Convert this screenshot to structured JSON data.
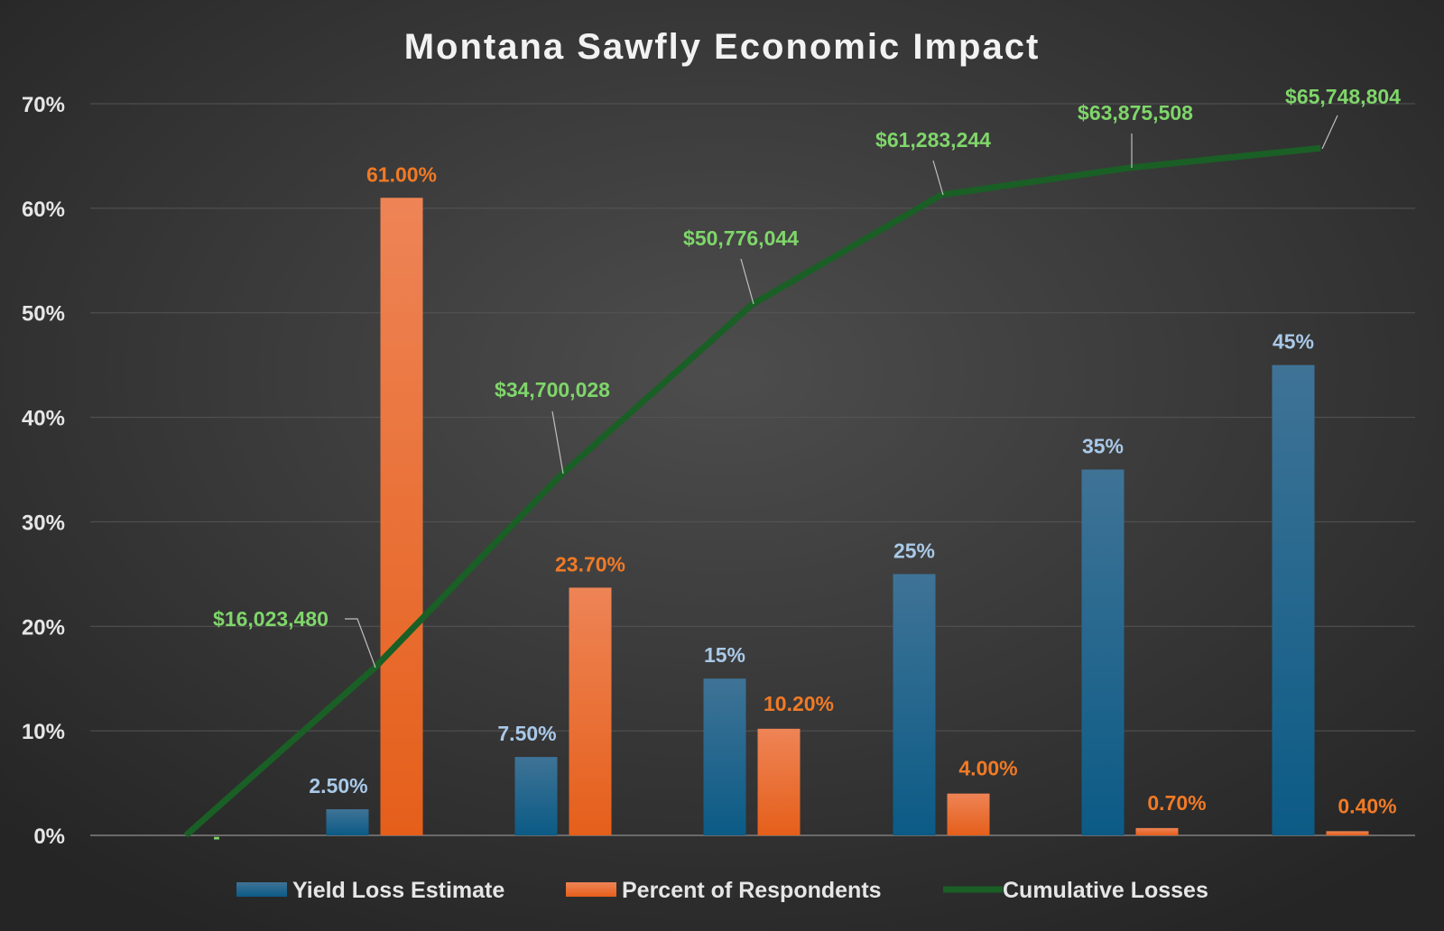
{
  "chart_data": {
    "type": "bar",
    "title": "Montana Sawfly Economic Impact",
    "xlabel": "",
    "ylabel": "",
    "ylim": [
      0,
      70
    ],
    "y_ticks": [
      "0%",
      "10%",
      "20%",
      "30%",
      "40%",
      "50%",
      "60%",
      "70%"
    ],
    "secondary_ylim": [
      0,
      70000000
    ],
    "grid": true,
    "legend_position": "bottom",
    "categories": [
      "",
      "",
      "",
      "",
      "",
      "",
      ""
    ],
    "series": [
      {
        "name": "Yield Loss Estimate",
        "type": "bar",
        "color": "#1f6a94",
        "values": [
          null,
          2.5,
          7.5,
          15,
          25,
          35,
          45
        ],
        "labels": [
          "",
          "2.50%",
          "7.50%",
          "15%",
          "25%",
          "35%",
          "45%"
        ]
      },
      {
        "name": "Percent of Respondents",
        "type": "bar",
        "color": "#f07028",
        "values": [
          null,
          61.0,
          23.7,
          10.2,
          4.0,
          0.7,
          0.4
        ],
        "labels": [
          "",
          "61.00%",
          "23.70%",
          "10.20%",
          "4.00%",
          "0.70%",
          "0.40%"
        ]
      },
      {
        "name": "Cumulative Losses",
        "type": "line",
        "color": "#1e6e2a",
        "axis": "secondary",
        "values": [
          0,
          16023480,
          34700028,
          50776044,
          61283244,
          63875508,
          65748804
        ],
        "labels": [
          "-",
          "$16,023,480",
          "$34,700,028",
          "$50,776,044",
          "$61,283,244",
          "$63,875,508",
          "$65,748,804"
        ]
      }
    ]
  }
}
